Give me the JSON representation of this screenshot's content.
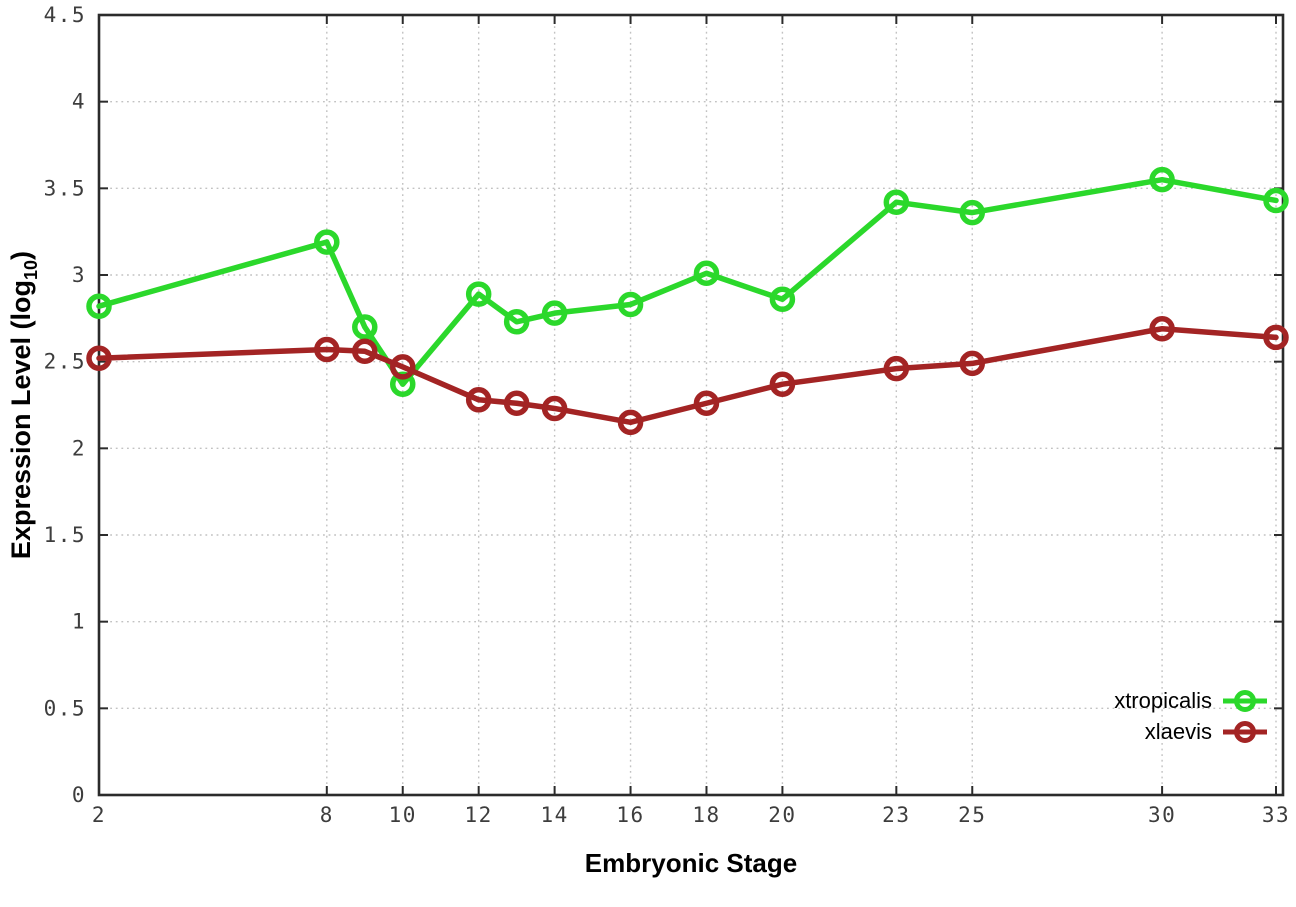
{
  "chart_data": {
    "type": "line",
    "title": "",
    "xlabel": "Embryonic Stage",
    "ylabel": {
      "main": "Expression Level (log",
      "sub": "10",
      "close": ")"
    },
    "xlim": [
      2,
      33
    ],
    "ylim": [
      0,
      4.5
    ],
    "grid": true,
    "legend_position": "bottom-right",
    "x_ticks": [
      2,
      8,
      10,
      12,
      14,
      16,
      18,
      20,
      23,
      25,
      30,
      33
    ],
    "x_tick_labels": [
      "2",
      "8",
      "10",
      "12",
      "14",
      "16",
      "18",
      "20",
      "23",
      "25",
      "30",
      "33"
    ],
    "y_ticks": [
      0,
      0.5,
      1,
      1.5,
      2,
      2.5,
      3,
      3.5,
      4,
      4.5
    ],
    "y_tick_labels": [
      "0",
      "0.5",
      "1",
      "1.5",
      "2",
      "2.5",
      "3",
      "3.5",
      "4",
      "4.5"
    ],
    "x": [
      2,
      8,
      9,
      10,
      12,
      13,
      14,
      16,
      18,
      20,
      23,
      25,
      30,
      33
    ],
    "series": [
      {
        "name": "xtropicalis",
        "color": "#2bd82b",
        "values": [
          2.82,
          3.19,
          2.7,
          2.37,
          2.89,
          2.73,
          2.78,
          2.83,
          3.01,
          2.86,
          3.42,
          3.36,
          3.55,
          3.43
        ]
      },
      {
        "name": "xlaevis",
        "color": "#a32424",
        "values": [
          2.52,
          2.57,
          2.56,
          2.47,
          2.28,
          2.26,
          2.23,
          2.15,
          2.26,
          2.37,
          2.46,
          2.49,
          2.69,
          2.64
        ]
      }
    ],
    "style": {
      "axis_color": "#2b2b2b",
      "grid_color": "#c2c2c2",
      "tick_label_color": "#3d3d3d",
      "background": "#ffffff"
    }
  }
}
